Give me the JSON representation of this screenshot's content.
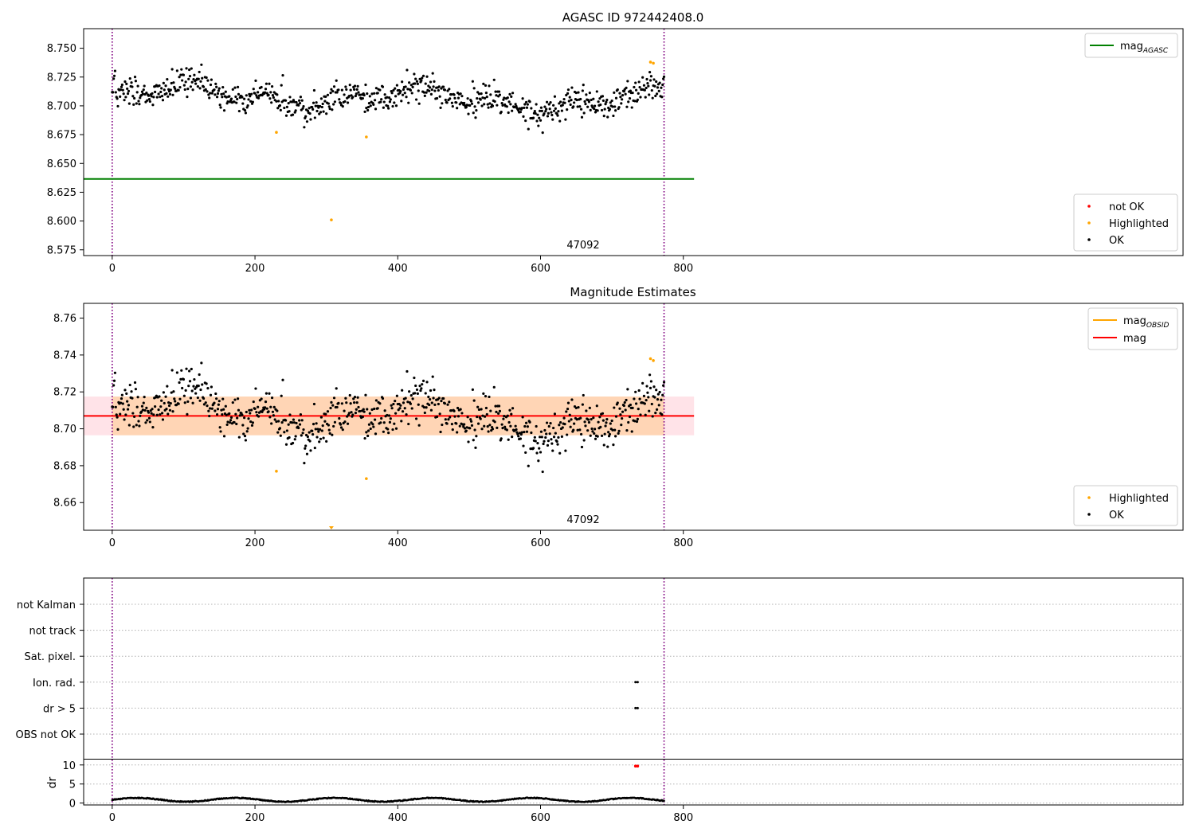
{
  "figure": {
    "obsid_label": "47092"
  },
  "chart_data": [
    {
      "type": "scatter",
      "title": "AGASC ID 972442408.0",
      "xlim": [
        -40,
        1500
      ],
      "ylim": [
        8.57,
        8.767
      ],
      "x_ticks": [
        0,
        200,
        400,
        600,
        800
      ],
      "y_ticks": [
        8.575,
        8.6,
        8.625,
        8.65,
        8.675,
        8.7,
        8.725,
        8.75
      ],
      "y_tick_labels": [
        "8.575",
        "8.600",
        "8.625",
        "8.650",
        "8.675",
        "8.700",
        "8.725",
        "8.750"
      ],
      "reference_line": {
        "name": "mag",
        "name_sub": "AGASC",
        "y": 8.6365,
        "x_range": [
          -40,
          815
        ],
        "color": "#008000"
      },
      "obsid_boundaries": [
        0,
        773
      ],
      "series_ok": {
        "name": "OK",
        "color": "#000000",
        "n": 774,
        "x_range": [
          0,
          773
        ],
        "y_mean": 8.707,
        "y_spread": 0.018
      },
      "series_highlighted": {
        "name": "Highlighted",
        "color": "#ffa500",
        "points": [
          {
            "x": 230,
            "y": 8.677
          },
          {
            "x": 307,
            "y": 8.601
          },
          {
            "x": 356,
            "y": 8.673
          },
          {
            "x": 754,
            "y": 8.738
          },
          {
            "x": 758,
            "y": 8.737
          }
        ]
      },
      "legend_lines": [
        {
          "label": "mag",
          "sub": "AGASC",
          "color": "#008000"
        }
      ],
      "legend_points": [
        {
          "label": "not OK",
          "color": "#ff0000"
        },
        {
          "label": "Highlighted",
          "color": "#ffa500"
        },
        {
          "label": "OK",
          "color": "#000000"
        }
      ]
    },
    {
      "type": "scatter",
      "title": "Magnitude Estimates",
      "xlim": [
        -40,
        1500
      ],
      "ylim": [
        8.645,
        8.768
      ],
      "x_ticks": [
        0,
        200,
        400,
        600,
        800
      ],
      "y_ticks": [
        8.66,
        8.68,
        8.7,
        8.72,
        8.74,
        8.76
      ],
      "y_tick_labels": [
        "8.66",
        "8.68",
        "8.70",
        "8.72",
        "8.74",
        "8.76"
      ],
      "mean_line": {
        "name": "mag",
        "y": 8.707,
        "x_range": [
          -40,
          815
        ],
        "color": "#ff0000"
      },
      "obsid_band": {
        "y_low": 8.6965,
        "y_high": 8.7175,
        "x_range": [
          -40,
          815
        ],
        "color": "#ffa500"
      },
      "mag_band": {
        "y_low": 8.6965,
        "y_high": 8.7175,
        "x_range": [
          -40,
          815
        ],
        "color": "#ffc0cb"
      },
      "obsid_boundaries": [
        0,
        773
      ],
      "series_ok": {
        "name": "OK",
        "color": "#000000",
        "n": 774,
        "x_range": [
          0,
          773
        ],
        "y_mean": 8.707,
        "y_spread": 0.018
      },
      "series_highlighted": {
        "name": "Highlighted",
        "color": "#ffa500",
        "points": [
          {
            "x": 230,
            "y": 8.677
          },
          {
            "x": 356,
            "y": 8.673
          },
          {
            "x": 754,
            "y": 8.738
          },
          {
            "x": 758,
            "y": 8.737
          }
        ],
        "below_range_markers": [
          {
            "x": 307
          }
        ]
      },
      "legend_lines": [
        {
          "label": "mag",
          "sub": "OBSID",
          "color": "#ffa500"
        },
        {
          "label": "mag",
          "sub": "",
          "color": "#ff0000"
        }
      ],
      "legend_points": [
        {
          "label": "Highlighted",
          "color": "#ffa500"
        },
        {
          "label": "OK",
          "color": "#000000"
        }
      ]
    },
    {
      "type": "scatter",
      "title": "",
      "xlim": [
        -40,
        1500
      ],
      "x_ticks": [
        0,
        200,
        400,
        600,
        800
      ],
      "flag_categories": [
        "not Kalman",
        "not track",
        "Sat. pixel.",
        "Ion. rad.",
        "dr > 5",
        "OBS not OK"
      ],
      "flag_points": [
        {
          "category": "Ion. rad.",
          "x": [
            733,
            736
          ]
        },
        {
          "category": "dr > 5",
          "x": [
            733,
            736
          ]
        }
      ],
      "obsid_boundaries": [
        0,
        773
      ],
      "dr": {
        "ylabel": "dr",
        "ylim": [
          -0.5,
          11
        ],
        "y_ticks": [
          0,
          5,
          10
        ],
        "y_tick_labels": [
          "0",
          "5",
          "10"
        ],
        "n": 774,
        "x_range": [
          0,
          773
        ],
        "y_typical": [
          0.3,
          1.4
        ],
        "outliers": [
          {
            "x": 733,
            "y": 9.7
          },
          {
            "x": 736,
            "y": 9.7
          }
        ],
        "outlier_color": "#ff0000"
      }
    }
  ]
}
